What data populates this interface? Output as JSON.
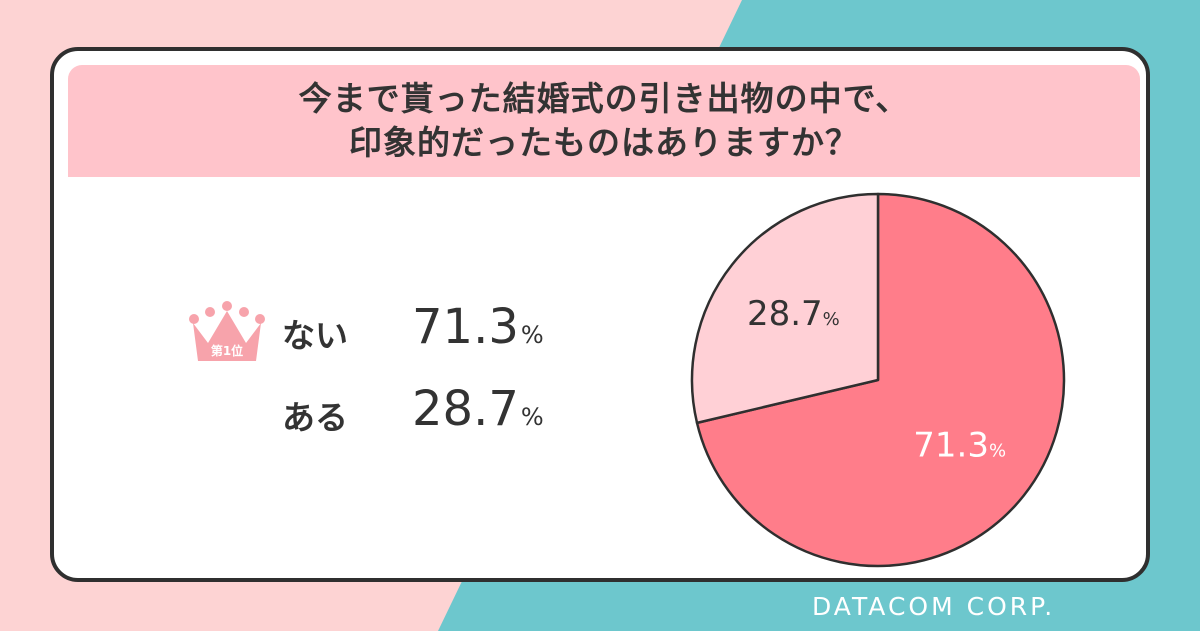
{
  "colors": {
    "bg_pink": "#fdd3d3",
    "bg_teal": "#6dc7cd",
    "title_band": "#ffc4cb",
    "slice_major": "#ff7d8a",
    "slice_minor": "#ffd0d6",
    "crown": "#f7a3ab",
    "border": "#2f2f2f"
  },
  "title": {
    "line1": "今まで貰った結婚式の引き出物の中で、",
    "line2": "印象的だったものはありますか？"
  },
  "legend": {
    "items": [
      {
        "label": "ない",
        "value": "71.3",
        "unit": "%",
        "rank_badge": "第1位",
        "icon": "crown-icon"
      },
      {
        "label": "ある",
        "value": "28.7",
        "unit": "%"
      }
    ]
  },
  "chart_data": {
    "type": "pie",
    "title": "今まで貰った結婚式の引き出物の中で、印象的だったものはありますか？",
    "slices": [
      {
        "label": "ない",
        "value": 71.3,
        "color": "#ff7d8a",
        "label_color": "#ffffff"
      },
      {
        "label": "ある",
        "value": 28.7,
        "color": "#ffd0d6",
        "label_color": "#333333"
      }
    ],
    "start": "12 o'clock",
    "direction": "clockwise",
    "unit": "%"
  },
  "brand": "DATACOM CORP."
}
